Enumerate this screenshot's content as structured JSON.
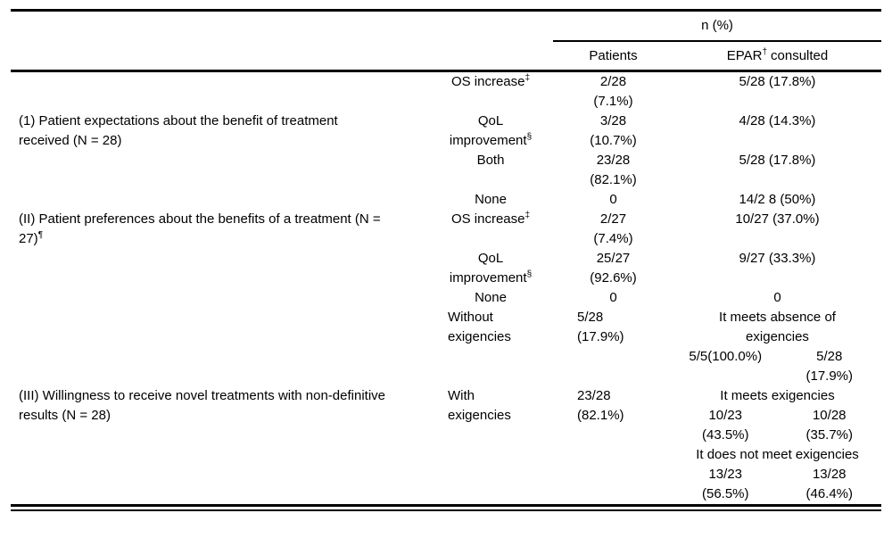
{
  "header": {
    "n_pct": "n (%)",
    "patients": "Patients",
    "epar_base": "EPAR",
    "epar_sup": "†",
    "epar_rest": "consulted"
  },
  "s1": {
    "label1": "(1) Patient expectations about the benefit of treatment",
    "label2": "received (N = 28)",
    "r1": {
      "sub": "OS increase",
      "sub_sup": "‡",
      "p1": "2/28",
      "p2": "(7.1%)",
      "epar": "5/28 (17.8%)"
    },
    "r2": {
      "sub1": "QoL",
      "sub2": "improvement",
      "sub_sup": "§",
      "p1": "3/28",
      "p2": "(10.7%)",
      "epar": "4/28 (14.3%)"
    },
    "r3": {
      "sub": "Both",
      "p1": "23/28",
      "p2": "(82.1%)",
      "epar": "5/28 (17.8%)"
    },
    "r4": {
      "sub": "None",
      "p1": "0",
      "epar": "14/2 8 (50%)"
    }
  },
  "s2": {
    "label1": "(II) Patient preferences about the benefits of a treatment (N =",
    "label2": "27)",
    "label2_sup": "¶",
    "r1": {
      "sub": "OS increase",
      "sub_sup": "‡",
      "p1": "2/27",
      "p2": "(7.4%)",
      "epar": "10/27 (37.0%)"
    },
    "r2": {
      "sub1": "QoL",
      "sub2": "improvement",
      "sub_sup": "§",
      "p1": "25/27",
      "p2": "(92.6%)",
      "epar": "9/27 (33.3%)"
    },
    "r3": {
      "sub": "None",
      "p1": "0",
      "epar": "0"
    }
  },
  "s3": {
    "label1": "(III) Willingness to receive novel treatments with non-definitive",
    "label2": "results (N = 28)",
    "r1": {
      "sub1": "Without",
      "sub2": "exigencies",
      "p1": "5/28",
      "p2": "(17.9%)",
      "head1": "It meets absence of",
      "head2": "exigencies",
      "left1": "5/5(100.0%)",
      "right1": "5/28",
      "right2": "(17.9%)"
    },
    "r2": {
      "sub1": "With",
      "sub2": "exigencies",
      "p1": "23/28",
      "p2": "(82.1%)",
      "g1_head": "It meets exigencies",
      "g1_left1": "10/23",
      "g1_left2": "(43.5%)",
      "g1_right1": "10/28",
      "g1_right2": "(35.7%)",
      "g2_head": "It does not meet exigencies",
      "g2_left1": "13/23",
      "g2_left2": "(56.5%)",
      "g2_right1": "13/28",
      "g2_right2": "(46.4%)"
    }
  }
}
